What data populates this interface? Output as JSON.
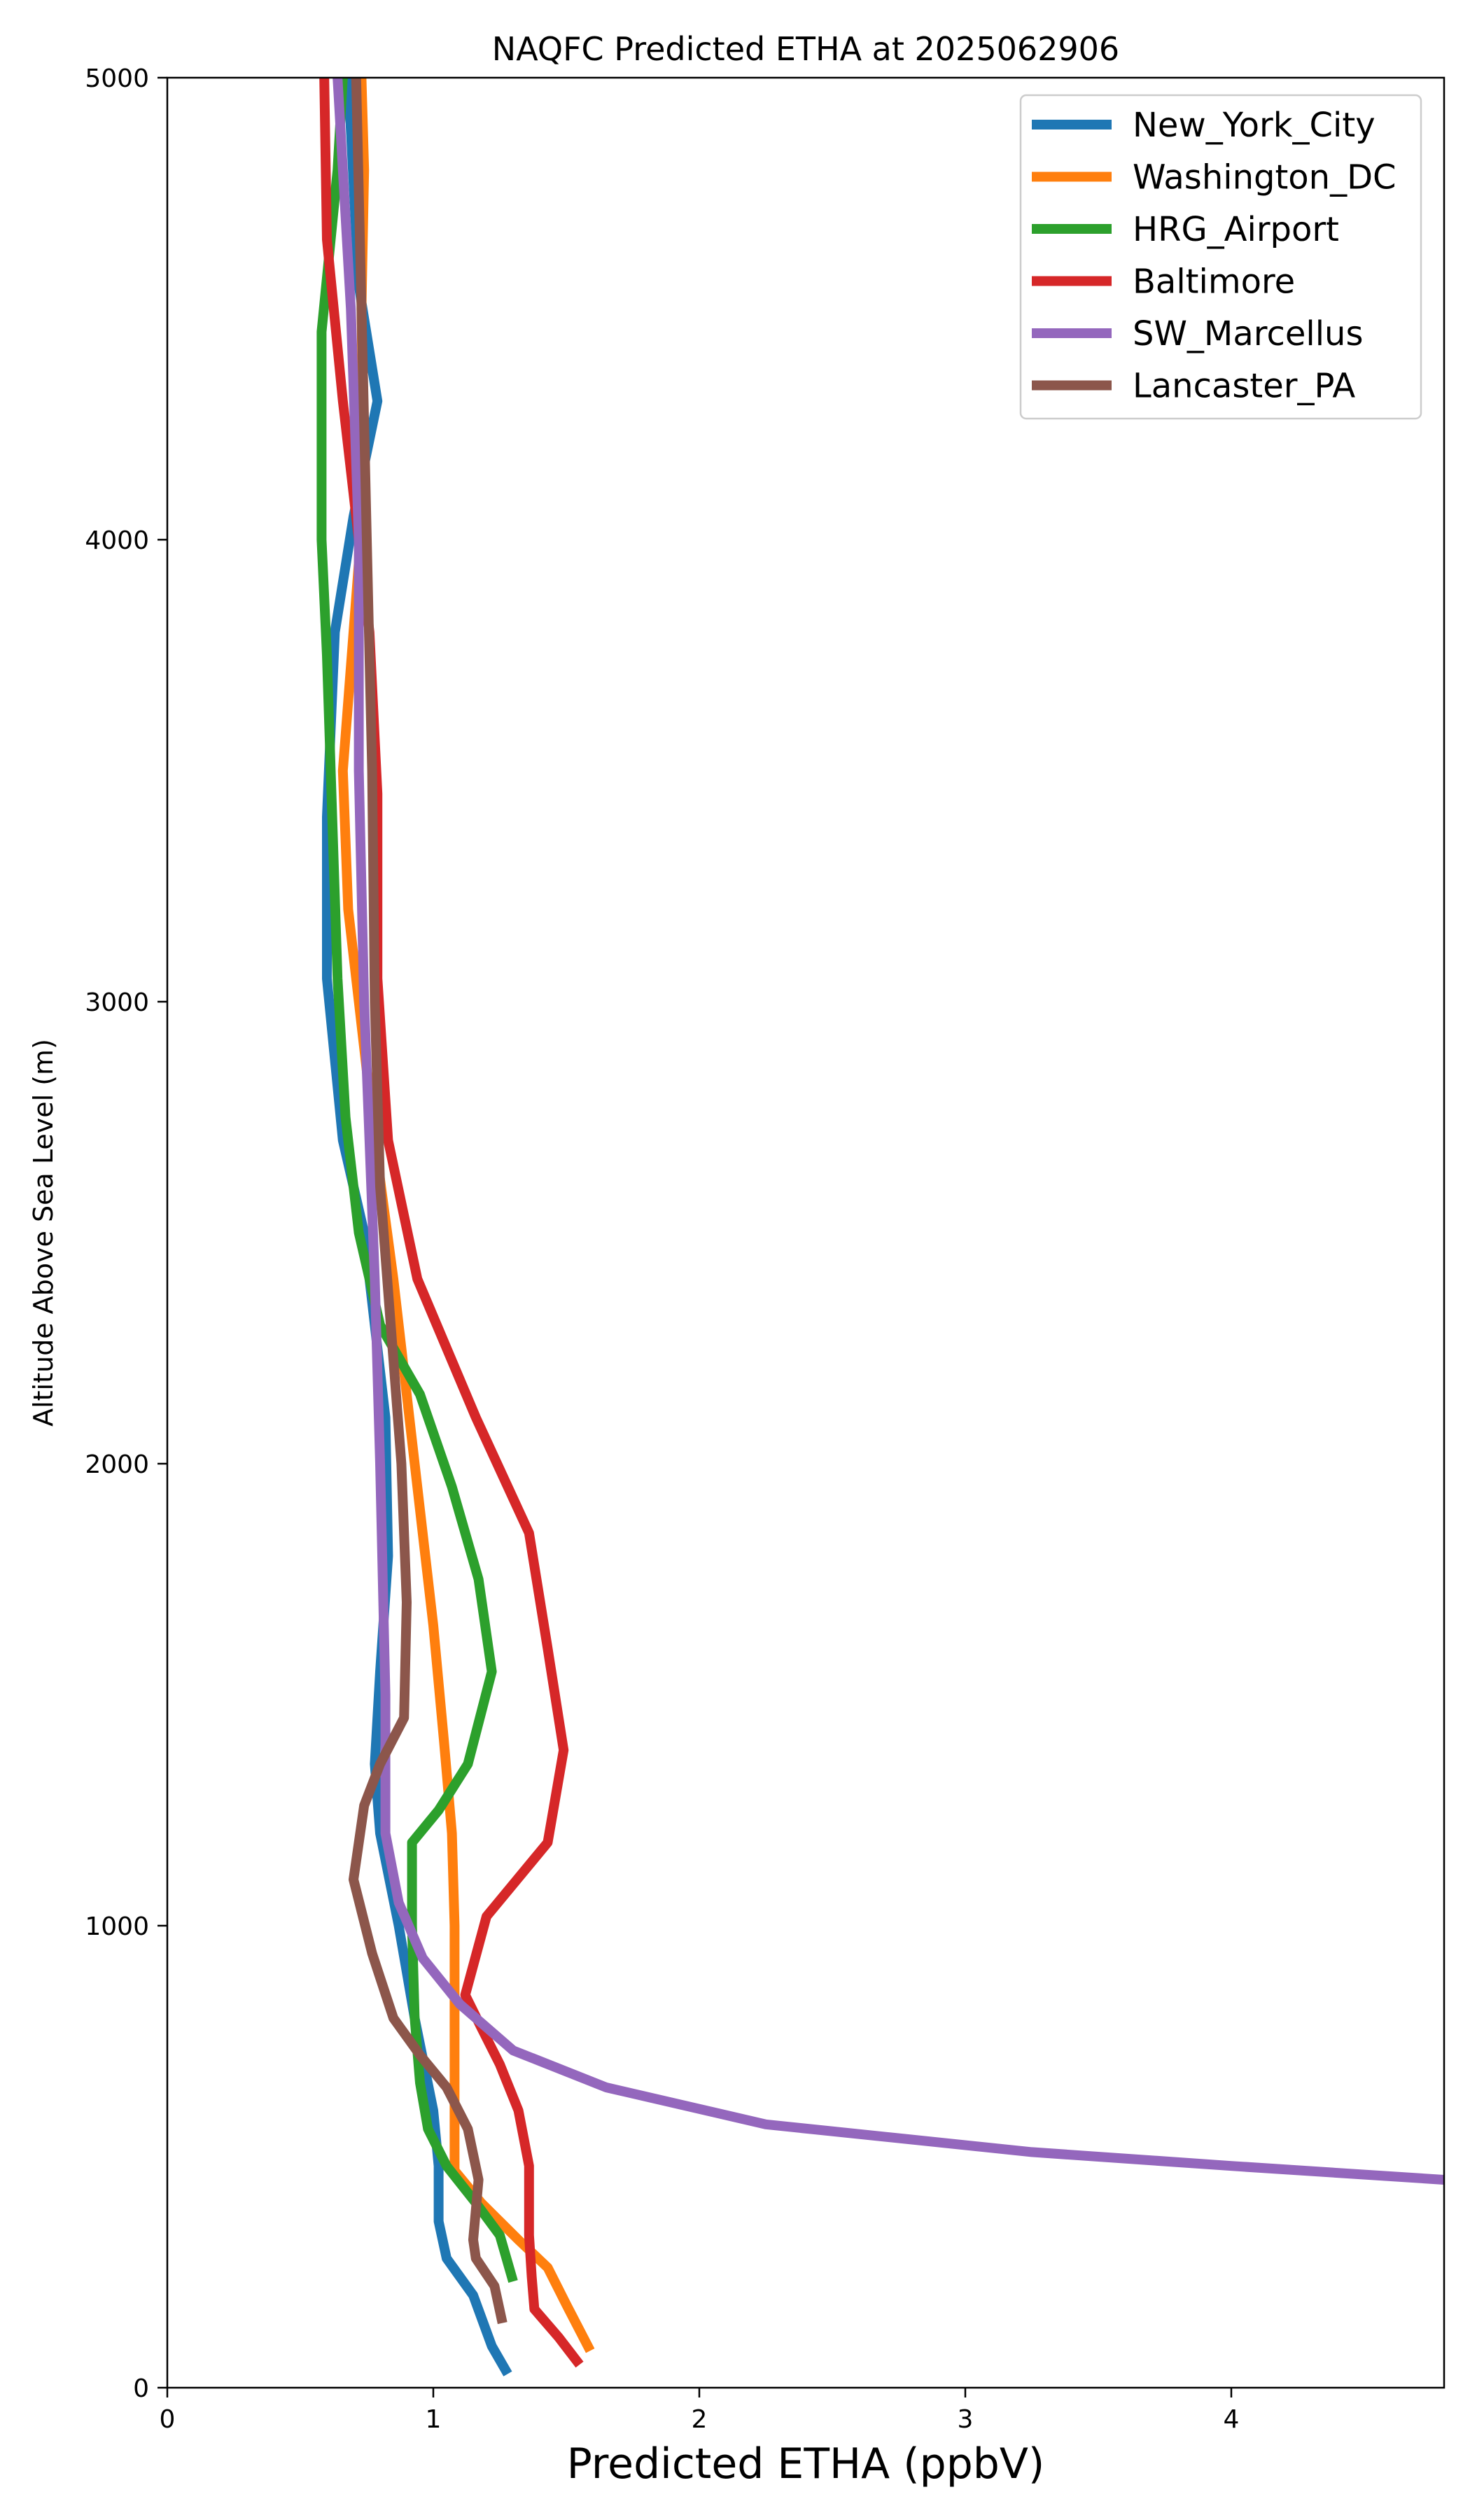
{
  "chart_data": {
    "type": "line",
    "title": "NAQFC Predicted ETHA at 2025062906",
    "xlabel": "Predicted ETHA (ppbV)",
    "ylabel": "Altitude Above Sea Level (m)",
    "xlim": [
      0,
      4.8
    ],
    "ylim": [
      0,
      5000
    ],
    "xticks": [
      0,
      1,
      2,
      3,
      4
    ],
    "yticks": [
      0,
      1000,
      2000,
      3000,
      4000,
      5000
    ],
    "grid": false,
    "legend_position": "top-right",
    "series": [
      {
        "name": "New_York_City",
        "color": "#1f77b4",
        "points": [
          [
            1.28,
            30
          ],
          [
            1.22,
            90
          ],
          [
            1.15,
            200
          ],
          [
            1.05,
            280
          ],
          [
            1.02,
            360
          ],
          [
            1.02,
            480
          ],
          [
            1.0,
            600
          ],
          [
            0.93,
            800
          ],
          [
            0.87,
            1000
          ],
          [
            0.8,
            1200
          ],
          [
            0.78,
            1350
          ],
          [
            0.8,
            1550
          ],
          [
            0.83,
            1800
          ],
          [
            0.82,
            2100
          ],
          [
            0.78,
            2300
          ],
          [
            0.74,
            2500
          ],
          [
            0.66,
            2700
          ],
          [
            0.6,
            3050
          ],
          [
            0.6,
            3400
          ],
          [
            0.63,
            3800
          ],
          [
            0.7,
            4050
          ],
          [
            0.79,
            4300
          ],
          [
            0.72,
            4550
          ],
          [
            0.68,
            5000
          ]
        ]
      },
      {
        "name": "Washington_DC",
        "color": "#ff7f0e",
        "points": [
          [
            1.59,
            80
          ],
          [
            1.5,
            180
          ],
          [
            1.43,
            260
          ],
          [
            1.32,
            320
          ],
          [
            1.18,
            400
          ],
          [
            1.08,
            470
          ],
          [
            1.08,
            600
          ],
          [
            1.08,
            800
          ],
          [
            1.08,
            1000
          ],
          [
            1.07,
            1200
          ],
          [
            1.04,
            1400
          ],
          [
            1.0,
            1650
          ],
          [
            0.95,
            1900
          ],
          [
            0.9,
            2150
          ],
          [
            0.85,
            2400
          ],
          [
            0.78,
            2700
          ],
          [
            0.72,
            3000
          ],
          [
            0.68,
            3200
          ],
          [
            0.66,
            3500
          ],
          [
            0.7,
            3800
          ],
          [
            0.74,
            4100
          ],
          [
            0.73,
            4500
          ],
          [
            0.74,
            4800
          ],
          [
            0.73,
            5000
          ]
        ]
      },
      {
        "name": "HRG_Airport",
        "color": "#2ca02c",
        "points": [
          [
            1.3,
            230
          ],
          [
            1.25,
            330
          ],
          [
            1.16,
            400
          ],
          [
            1.05,
            480
          ],
          [
            0.98,
            560
          ],
          [
            0.95,
            660
          ],
          [
            0.93,
            800
          ],
          [
            0.92,
            1000
          ],
          [
            0.92,
            1180
          ],
          [
            1.02,
            1250
          ],
          [
            1.13,
            1350
          ],
          [
            1.22,
            1550
          ],
          [
            1.17,
            1750
          ],
          [
            1.07,
            1950
          ],
          [
            0.95,
            2150
          ],
          [
            0.8,
            2300
          ],
          [
            0.72,
            2500
          ],
          [
            0.67,
            2750
          ],
          [
            0.64,
            3050
          ],
          [
            0.62,
            3400
          ],
          [
            0.6,
            3750
          ],
          [
            0.58,
            4000
          ],
          [
            0.58,
            4450
          ],
          [
            0.64,
            4800
          ],
          [
            0.66,
            5000
          ]
        ]
      },
      {
        "name": "Baltimore",
        "color": "#d62728",
        "points": [
          [
            1.55,
            50
          ],
          [
            1.47,
            110
          ],
          [
            1.38,
            170
          ],
          [
            1.37,
            240
          ],
          [
            1.36,
            330
          ],
          [
            1.36,
            480
          ],
          [
            1.32,
            600
          ],
          [
            1.25,
            700
          ],
          [
            1.18,
            780
          ],
          [
            1.12,
            850
          ],
          [
            1.2,
            1020
          ],
          [
            1.43,
            1180
          ],
          [
            1.49,
            1380
          ],
          [
            1.43,
            1600
          ],
          [
            1.36,
            1850
          ],
          [
            1.16,
            2100
          ],
          [
            0.94,
            2400
          ],
          [
            0.83,
            2700
          ],
          [
            0.79,
            3050
          ],
          [
            0.79,
            3450
          ],
          [
            0.76,
            3800
          ],
          [
            0.66,
            4300
          ],
          [
            0.6,
            4650
          ],
          [
            0.59,
            5000
          ]
        ]
      },
      {
        "name": "SW_Marcellus",
        "color": "#9467bd",
        "points": [
          [
            4.8,
            450
          ],
          [
            4.0,
            480
          ],
          [
            3.25,
            510
          ],
          [
            2.25,
            570
          ],
          [
            1.65,
            650
          ],
          [
            1.3,
            730
          ],
          [
            1.1,
            830
          ],
          [
            0.96,
            930
          ],
          [
            0.87,
            1050
          ],
          [
            0.82,
            1200
          ],
          [
            0.82,
            1500
          ],
          [
            0.8,
            2000
          ],
          [
            0.78,
            2400
          ],
          [
            0.76,
            2700
          ],
          [
            0.74,
            3000
          ],
          [
            0.72,
            3500
          ],
          [
            0.72,
            4000
          ],
          [
            0.69,
            4500
          ],
          [
            0.64,
            5000
          ]
        ]
      },
      {
        "name": "Lancaster_PA",
        "color": "#8c564b",
        "points": [
          [
            1.26,
            140
          ],
          [
            1.23,
            220
          ],
          [
            1.16,
            280
          ],
          [
            1.15,
            320
          ],
          [
            1.17,
            450
          ],
          [
            1.13,
            560
          ],
          [
            1.05,
            650
          ],
          [
            0.95,
            720
          ],
          [
            0.85,
            800
          ],
          [
            0.77,
            940
          ],
          [
            0.7,
            1100
          ],
          [
            0.74,
            1260
          ],
          [
            0.8,
            1350
          ],
          [
            0.89,
            1450
          ],
          [
            0.9,
            1700
          ],
          [
            0.88,
            2000
          ],
          [
            0.84,
            2300
          ],
          [
            0.8,
            2600
          ],
          [
            0.78,
            3000
          ],
          [
            0.77,
            3500
          ],
          [
            0.75,
            4000
          ],
          [
            0.73,
            4500
          ],
          [
            0.71,
            5000
          ]
        ]
      }
    ]
  }
}
